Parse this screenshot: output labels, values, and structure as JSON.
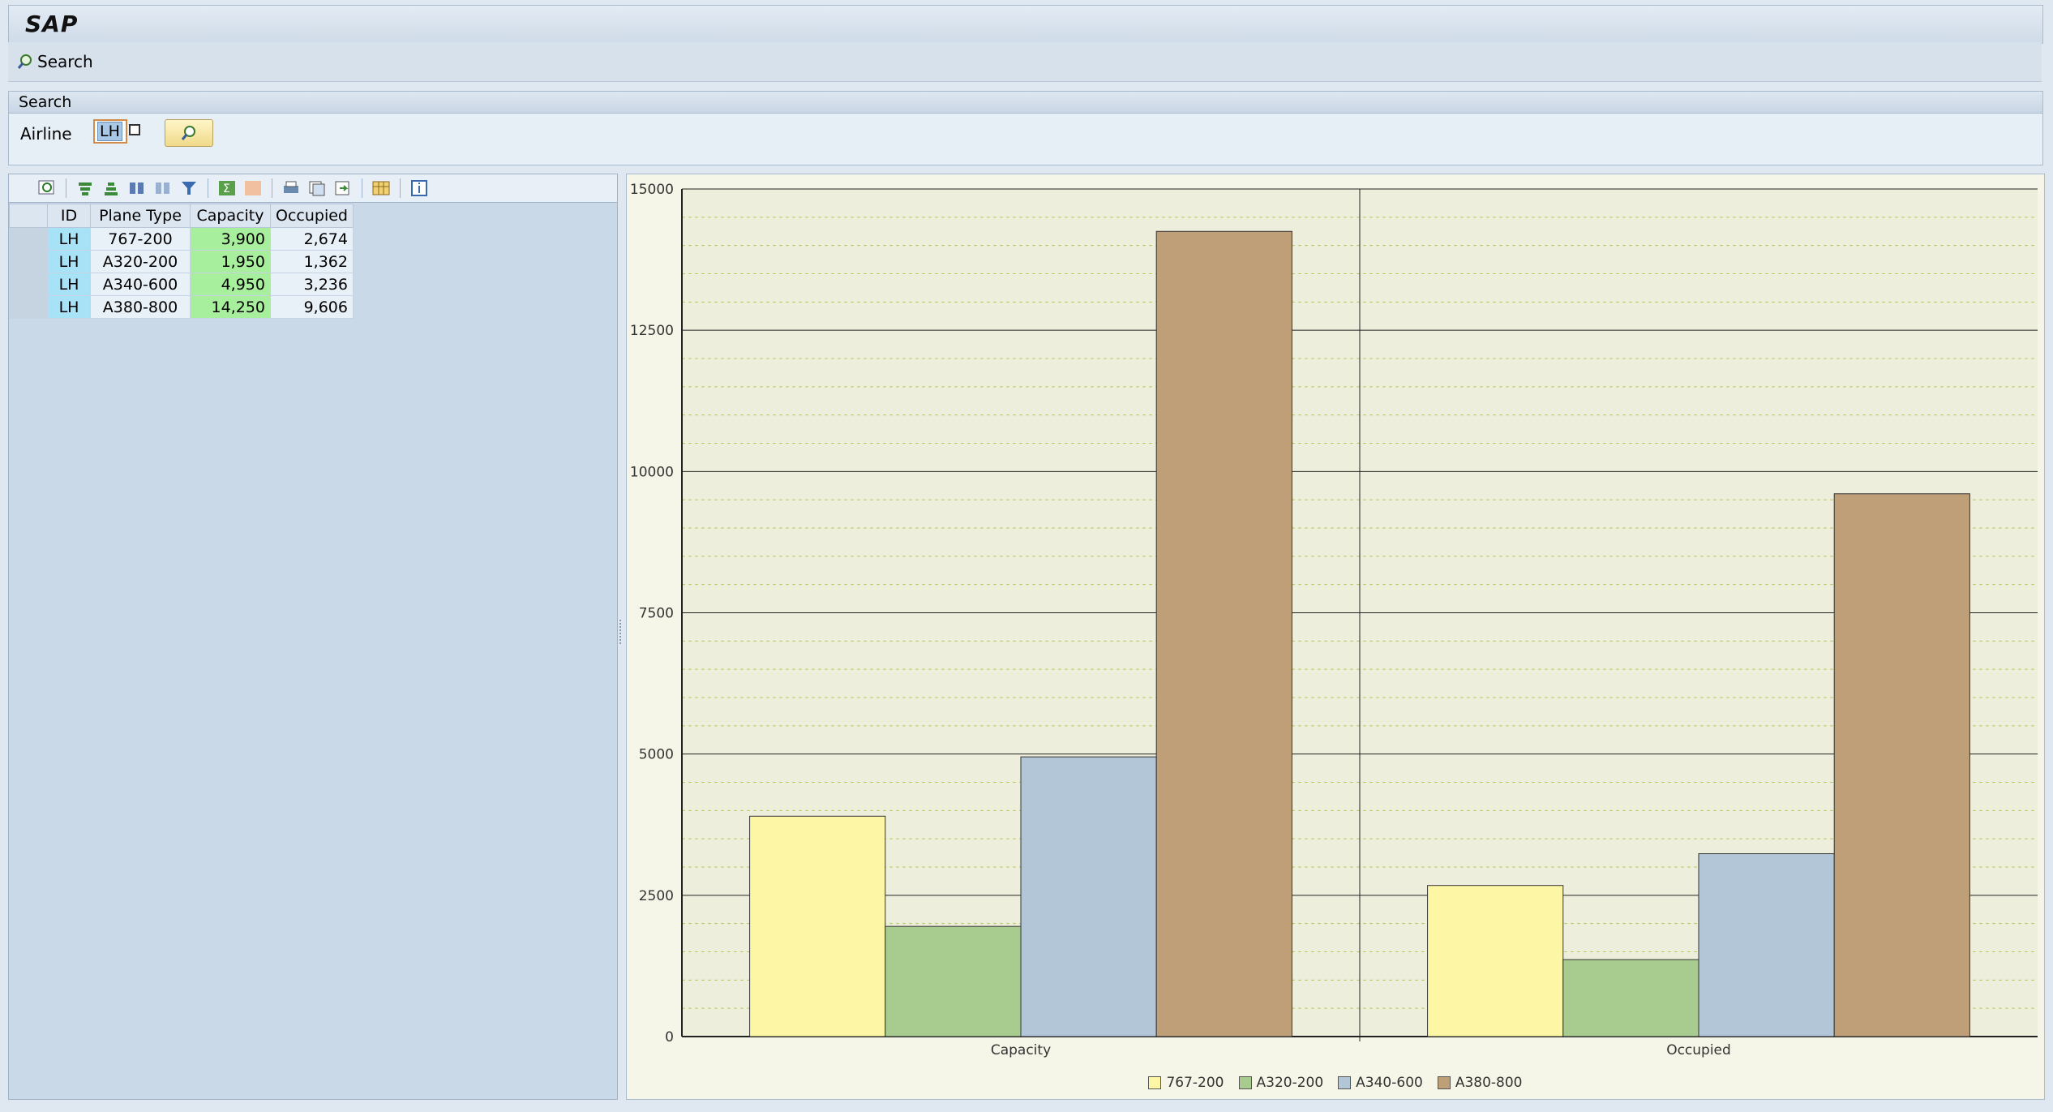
{
  "app": {
    "logo": "SAP"
  },
  "appbar": {
    "search_label": "Search"
  },
  "search_panel": {
    "title": "Search",
    "airline_label": "Airline",
    "airline_value": "LH"
  },
  "table": {
    "columns": [
      "ID",
      "Plane Type",
      "Capacity",
      "Occupied"
    ],
    "rows": [
      {
        "id": "LH",
        "plane_type": "767-200",
        "capacity": "3,900",
        "occupied": "2,674"
      },
      {
        "id": "LH",
        "plane_type": "A320-200",
        "capacity": "1,950",
        "occupied": "1,362"
      },
      {
        "id": "LH",
        "plane_type": "A340-600",
        "capacity": "4,950",
        "occupied": "3,236"
      },
      {
        "id": "LH",
        "plane_type": "A380-800",
        "capacity": "14,250",
        "occupied": "9,606"
      }
    ]
  },
  "chart_data": {
    "type": "bar",
    "categories": [
      "Capacity",
      "Occupied"
    ],
    "series": [
      {
        "name": "767-200",
        "values": [
          3900,
          2674
        ],
        "color": "#fdf7a5"
      },
      {
        "name": "A320-200",
        "values": [
          1950,
          1362
        ],
        "color": "#a8cc8f"
      },
      {
        "name": "A340-600",
        "values": [
          4950,
          3236
        ],
        "color": "#b3c6d8"
      },
      {
        "name": "A380-800",
        "values": [
          14250,
          9606
        ],
        "color": "#bf9f78"
      }
    ],
    "ylim": [
      0,
      15000
    ],
    "yticks": [
      "0",
      "2500",
      "5000",
      "7500",
      "10000",
      "12500",
      "15000"
    ],
    "grid": true,
    "legend": "bottom"
  }
}
